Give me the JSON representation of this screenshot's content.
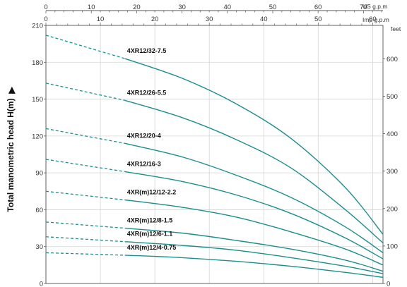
{
  "chart_data": {
    "type": "line",
    "ylabel": "Total manometric head H(m)",
    "ylabel_arrow": "▶",
    "ylim": [
      0,
      210
    ],
    "yticks": [
      0,
      30,
      60,
      90,
      120,
      150,
      180,
      210
    ],
    "right_axis": {
      "unit": "feet",
      "ticks": [
        0,
        100,
        200,
        300,
        400,
        500,
        600
      ],
      "range": [
        0,
        689
      ]
    },
    "top_axis_us": {
      "unit": "US g.p.m",
      "ticks": [
        0,
        10,
        20,
        30,
        40,
        50,
        60,
        70
      ],
      "range": [
        0,
        74.3
      ]
    },
    "top_axis_imp": {
      "unit": "Imp g.p.m",
      "ticks": [
        0,
        10,
        20,
        30,
        40,
        50,
        60
      ],
      "range": [
        0,
        61.9
      ]
    },
    "grid": true,
    "line_color": "#1a8f8f",
    "series": [
      {
        "name": "4XR12/32-7.5",
        "x": [
          0,
          14.5
        ],
        "dashed_y": [
          202,
          183
        ],
        "x_solid": [
          14.5,
          25,
          35,
          45,
          55,
          61.9
        ],
        "y_solid": [
          183,
          167,
          146,
          118,
          78,
          40
        ]
      },
      {
        "name": "4XR12/26-5.5",
        "x": [
          0,
          14.5
        ],
        "dashed_y": [
          163,
          149
        ],
        "x_solid": [
          14.5,
          25,
          35,
          45,
          55,
          61.9
        ],
        "y_solid": [
          149,
          135,
          117,
          94,
          60,
          33
        ]
      },
      {
        "name": "4XR12/20-4",
        "x": [
          0,
          14.5
        ],
        "dashed_y": [
          126,
          114
        ],
        "x_solid": [
          14.5,
          25,
          35,
          45,
          55,
          61.9
        ],
        "y_solid": [
          114,
          103,
          88,
          70,
          46,
          25
        ]
      },
      {
        "name": "4XR12/16-3",
        "x": [
          0,
          14.5
        ],
        "dashed_y": [
          101,
          91
        ],
        "x_solid": [
          14.5,
          25,
          35,
          45,
          55,
          61.9
        ],
        "y_solid": [
          91,
          83,
          72,
          57,
          37,
          20
        ]
      },
      {
        "name": "4XR(m)12/12-2.2",
        "x": [
          0,
          14.5
        ],
        "dashed_y": [
          75,
          68
        ],
        "x_solid": [
          14.5,
          25,
          35,
          45,
          55,
          61.9
        ],
        "y_solid": [
          68,
          62,
          54,
          42,
          28,
          15
        ]
      },
      {
        "name": "4XR(m)12/8-1.5",
        "x": [
          0,
          14.5
        ],
        "dashed_y": [
          50,
          45
        ],
        "x_solid": [
          14.5,
          25,
          35,
          45,
          55,
          61.9
        ],
        "y_solid": [
          45,
          41,
          35,
          28,
          19,
          10
        ]
      },
      {
        "name": "4XR(m)12/6-1.1",
        "x": [
          0,
          14.5
        ],
        "dashed_y": [
          38,
          34
        ],
        "x_solid": [
          14.5,
          25,
          35,
          45,
          55,
          61.9
        ],
        "y_solid": [
          34,
          31,
          27,
          21,
          14,
          8
        ]
      },
      {
        "name": "4XR(m)12/4-0.75",
        "x": [
          0,
          14.5
        ],
        "dashed_y": [
          25,
          23
        ],
        "x_solid": [
          14.5,
          25,
          35,
          45,
          55,
          61.9
        ],
        "y_solid": [
          23,
          21,
          18,
          14,
          9,
          5
        ]
      }
    ]
  }
}
